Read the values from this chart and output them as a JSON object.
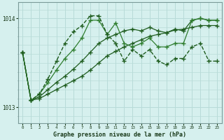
{
  "xlabel": "Graphe pression niveau de la mer (hPa)",
  "bg_color": "#d6f0ee",
  "grid_color": "#b8dbd8",
  "line_color_dark": "#1e5c1e",
  "line_color_med": "#2e7d2e",
  "ylim": [
    1012.82,
    1014.18
  ],
  "yticks": [
    1013,
    1014
  ],
  "xlim": [
    -0.5,
    23.5
  ],
  "xticks": [
    0,
    1,
    2,
    3,
    4,
    5,
    6,
    7,
    8,
    9,
    10,
    11,
    12,
    13,
    14,
    15,
    16,
    17,
    18,
    19,
    20,
    21,
    22,
    23
  ],
  "s1_x": [
    0,
    1,
    2,
    3,
    4,
    5,
    6,
    7,
    8,
    9,
    10,
    11,
    12,
    13,
    14,
    15,
    16,
    17,
    18,
    19,
    20,
    21,
    22,
    23
  ],
  "s1_y": [
    1013.62,
    1013.08,
    1013.1,
    1013.15,
    1013.2,
    1013.25,
    1013.3,
    1013.35,
    1013.42,
    1013.5,
    1013.58,
    1013.63,
    1013.68,
    1013.72,
    1013.76,
    1013.8,
    1013.82,
    1013.84,
    1013.87,
    1013.88,
    1013.9,
    1013.92,
    1013.92,
    1013.92
  ],
  "s2_x": [
    0,
    1,
    2,
    3,
    4,
    5,
    6,
    7,
    8,
    9,
    10,
    11,
    12,
    13,
    14,
    15,
    16,
    17,
    18,
    19,
    20,
    21,
    22,
    23
  ],
  "s2_y": [
    1013.62,
    1013.08,
    1013.12,
    1013.2,
    1013.28,
    1013.35,
    1013.43,
    1013.52,
    1013.62,
    1013.72,
    1013.78,
    1013.82,
    1013.86,
    1013.88,
    1013.86,
    1013.9,
    1013.86,
    1013.84,
    1013.88,
    1013.86,
    1013.98,
    1014.0,
    1013.98,
    1013.98
  ],
  "s3_x": [
    0,
    1,
    2,
    3,
    4,
    5,
    6,
    7,
    8,
    9,
    10,
    11,
    12,
    13,
    14,
    15,
    16,
    17,
    18,
    19,
    20,
    21,
    22,
    23
  ],
  "s3_y": [
    1013.62,
    1013.08,
    1013.15,
    1013.28,
    1013.42,
    1013.55,
    1013.65,
    1013.78,
    1013.98,
    1013.98,
    1013.82,
    1013.95,
    1013.72,
    1013.68,
    1013.72,
    1013.78,
    1013.68,
    1013.68,
    1013.72,
    1013.72,
    1013.98,
    1014.0,
    1013.98,
    1013.98
  ],
  "s4_x": [
    0,
    1,
    2,
    3,
    4,
    5,
    6,
    7,
    8,
    9,
    10,
    11,
    12,
    13,
    14,
    15,
    16,
    17,
    18,
    19,
    20,
    21,
    22,
    23
  ],
  "s4_y": [
    1013.62,
    1013.08,
    1013.15,
    1013.32,
    1013.52,
    1013.72,
    1013.85,
    1013.92,
    1014.03,
    1014.03,
    1013.82,
    1013.72,
    1013.52,
    1013.65,
    1013.58,
    1013.65,
    1013.52,
    1013.48,
    1013.55,
    1013.55,
    1013.68,
    1013.72,
    1013.52,
    1013.52
  ]
}
